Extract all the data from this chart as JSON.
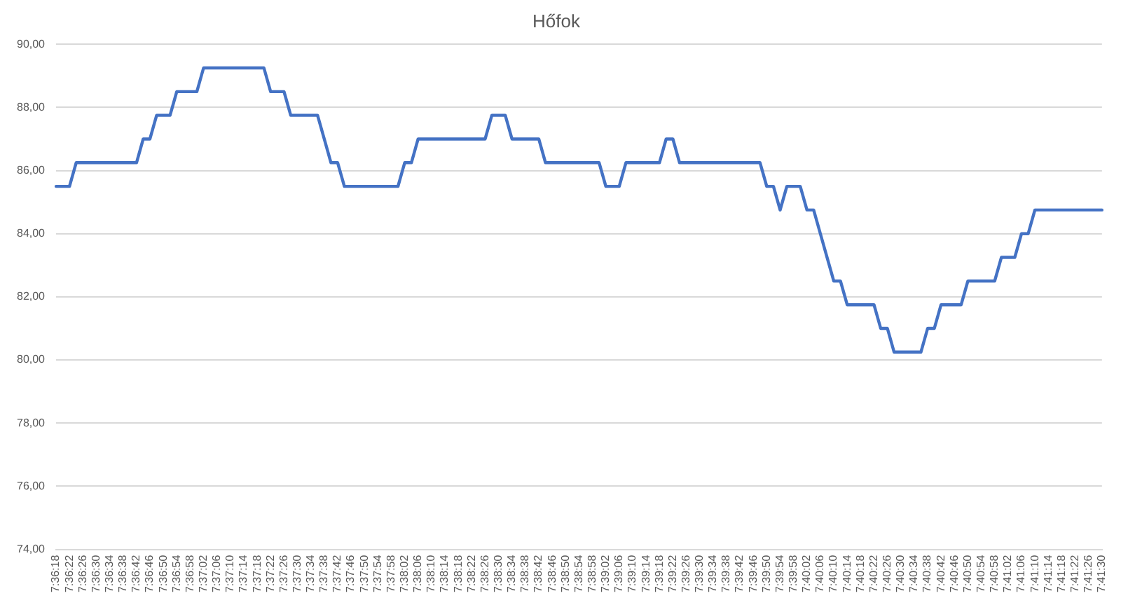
{
  "chart_data": {
    "type": "line",
    "title": "Hőfok",
    "categories": [
      "7:36:18",
      null,
      "7:36:22",
      null,
      "7:36:26",
      null,
      "7:36:30",
      null,
      "7:36:34",
      null,
      "7:36:38",
      null,
      "7:36:42",
      null,
      "7:36:46",
      null,
      "7:36:50",
      null,
      "7:36:54",
      null,
      "7:36:58",
      null,
      "7:37:02",
      null,
      "7:37:06",
      null,
      "7:37:10",
      null,
      "7:37:14",
      null,
      "7:37:18",
      null,
      "7:37:22",
      null,
      "7:37:26",
      null,
      "7:37:30",
      null,
      "7:37:34",
      null,
      "7:37:38",
      null,
      "7:37:42",
      null,
      "7:37:46",
      null,
      "7:37:50",
      null,
      "7:37:54",
      null,
      "7:37:58",
      null,
      "7:38:02",
      null,
      "7:38:06",
      null,
      "7:38:10",
      null,
      "7:38:14",
      null,
      "7:38:18",
      null,
      "7:38:22",
      null,
      "7:38:26",
      null,
      "7:38:30",
      null,
      "7:38:34",
      null,
      "7:38:38",
      null,
      "7:38:42",
      null,
      "7:38:46",
      null,
      "7:38:50",
      null,
      "7:38:54",
      null,
      "7:38:58",
      null,
      "7:39:02",
      null,
      "7:39:06",
      null,
      "7:39:10",
      null,
      "7:39:14",
      null,
      "7:39:18",
      null,
      "7:39:22",
      null,
      "7:39:26",
      null,
      "7:39:30",
      null,
      "7:39:34",
      null,
      "7:39:38",
      null,
      "7:39:42",
      null,
      "7:39:46",
      null,
      "7:39:50",
      null,
      "7:39:54",
      null,
      "7:39:58",
      null,
      "7:40:02",
      null,
      "7:40:06",
      null,
      "7:40:10",
      null,
      "7:40:14",
      null,
      "7:40:18",
      null,
      "7:40:22",
      null,
      "7:40:26",
      null,
      "7:40:30",
      null,
      "7:40:34",
      null,
      "7:40:38",
      null,
      "7:40:42",
      null,
      "7:40:46",
      null,
      "7:40:50",
      null,
      "7:40:54",
      null,
      "7:40:58",
      null,
      "7:41:02",
      null,
      "7:41:06",
      null,
      "7:41:10",
      null,
      "7:41:14",
      null,
      "7:41:18",
      null,
      "7:41:22",
      null,
      "7:41:26",
      null,
      "7:41:30"
    ],
    "series": [
      {
        "color": "#4472c4",
        "values": [
          85.5,
          85.5,
          85.5,
          86.25,
          86.25,
          86.25,
          86.25,
          86.25,
          86.25,
          86.25,
          86.25,
          86.25,
          86.25,
          87,
          87,
          87.75,
          87.75,
          87.75,
          88.5,
          88.5,
          88.5,
          88.5,
          89.25,
          89.25,
          89.25,
          89.25,
          89.25,
          89.25,
          89.25,
          89.25,
          89.25,
          89.25,
          88.5,
          88.5,
          88.5,
          87.75,
          87.75,
          87.75,
          87.75,
          87.75,
          87,
          86.25,
          86.25,
          85.5,
          85.5,
          85.5,
          85.5,
          85.5,
          85.5,
          85.5,
          85.5,
          85.5,
          86.25,
          86.25,
          87,
          87,
          87,
          87,
          87,
          87,
          87,
          87,
          87,
          87,
          87,
          87.75,
          87.75,
          87.75,
          87,
          87,
          87,
          87,
          87,
          86.25,
          86.25,
          86.25,
          86.25,
          86.25,
          86.25,
          86.25,
          86.25,
          86.25,
          85.5,
          85.5,
          85.5,
          86.25,
          86.25,
          86.25,
          86.25,
          86.25,
          86.25,
          87,
          87,
          86.25,
          86.25,
          86.25,
          86.25,
          86.25,
          86.25,
          86.25,
          86.25,
          86.25,
          86.25,
          86.25,
          86.25,
          86.25,
          85.5,
          85.5,
          84.75,
          85.5,
          85.5,
          85.5,
          84.75,
          84.75,
          84,
          83.25,
          82.5,
          82.5,
          81.75,
          81.75,
          81.75,
          81.75,
          81.75,
          81,
          81,
          80.25,
          80.25,
          80.25,
          80.25,
          80.25,
          81,
          81,
          81.75,
          81.75,
          81.75,
          81.75,
          82.5,
          82.5,
          82.5,
          82.5,
          82.5,
          83.25,
          83.25,
          83.25,
          84,
          84,
          84.75,
          84.75,
          84.75,
          84.75,
          84.75,
          84.75,
          84.75,
          84.75,
          84.75,
          84.75,
          84.75
        ]
      }
    ],
    "ylim": [
      74,
      90
    ],
    "yticks": [
      {
        "value": 74,
        "label": "74,00"
      },
      {
        "value": 76,
        "label": "76,00"
      },
      {
        "value": 78,
        "label": "78,00"
      },
      {
        "value": 80,
        "label": "80,00"
      },
      {
        "value": 82,
        "label": "82,00"
      },
      {
        "value": 84,
        "label": "84,00"
      },
      {
        "value": 86,
        "label": "86,00"
      },
      {
        "value": 88,
        "label": "88,00"
      },
      {
        "value": 90,
        "label": "90,00"
      }
    ],
    "grid": "y",
    "legend": false,
    "marker": "none",
    "line_style": "solid"
  }
}
